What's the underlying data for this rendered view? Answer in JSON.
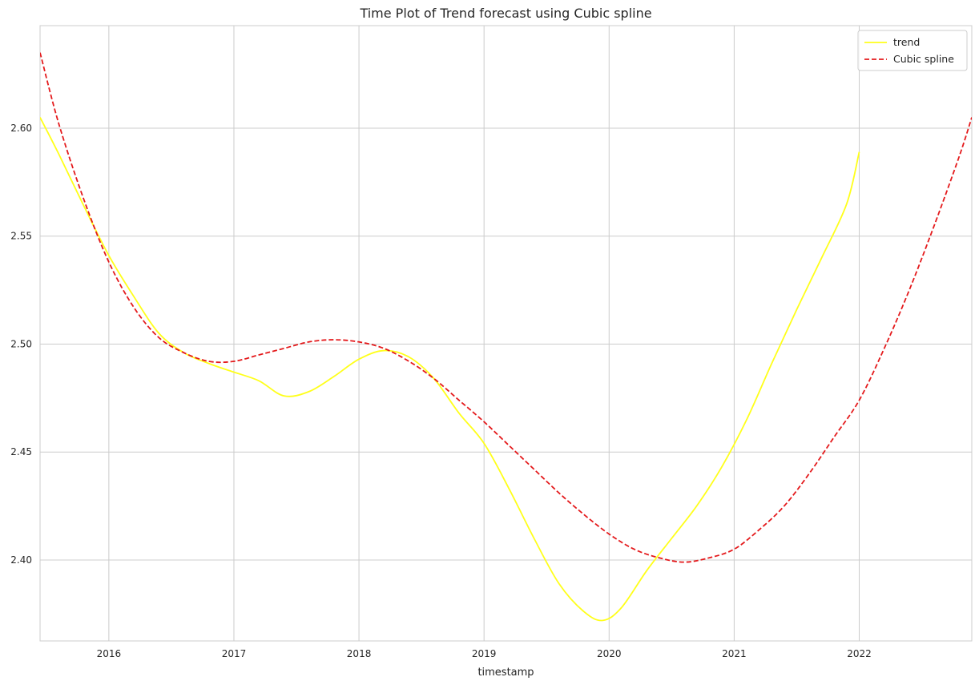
{
  "chart_data": {
    "type": "line",
    "title": "Time Plot of Trend forecast using Cubic spline",
    "xlabel": "timestamp",
    "ylabel": "",
    "xlim": [
      2015.45,
      2022.9
    ],
    "ylim": [
      2.3625,
      2.6475
    ],
    "grid": true,
    "legend": {
      "position": "top-right"
    },
    "x_ticks": [
      {
        "value": 2016,
        "label": "2016"
      },
      {
        "value": 2017,
        "label": "2017"
      },
      {
        "value": 2018,
        "label": "2018"
      },
      {
        "value": 2019,
        "label": "2019"
      },
      {
        "value": 2020,
        "label": "2020"
      },
      {
        "value": 2021,
        "label": "2021"
      },
      {
        "value": 2022,
        "label": "2022"
      }
    ],
    "y_ticks": [
      {
        "value": 2.4,
        "label": "2.40"
      },
      {
        "value": 2.45,
        "label": "2.45"
      },
      {
        "value": 2.5,
        "label": "2.50"
      },
      {
        "value": 2.55,
        "label": "2.55"
      },
      {
        "value": 2.6,
        "label": "2.60"
      }
    ],
    "series": [
      {
        "name": "trend",
        "color": "#ffff1a",
        "dash": "solid",
        "points": [
          [
            2015.45,
            2.605
          ],
          [
            2015.6,
            2.588
          ],
          [
            2015.8,
            2.564
          ],
          [
            2016.0,
            2.541
          ],
          [
            2016.2,
            2.522
          ],
          [
            2016.4,
            2.505
          ],
          [
            2016.6,
            2.496
          ],
          [
            2016.8,
            2.491
          ],
          [
            2017.0,
            2.487
          ],
          [
            2017.2,
            2.483
          ],
          [
            2017.4,
            2.476
          ],
          [
            2017.6,
            2.478
          ],
          [
            2017.8,
            2.485
          ],
          [
            2018.0,
            2.493
          ],
          [
            2018.2,
            2.497
          ],
          [
            2018.4,
            2.494
          ],
          [
            2018.6,
            2.484
          ],
          [
            2018.8,
            2.468
          ],
          [
            2019.0,
            2.454
          ],
          [
            2019.2,
            2.433
          ],
          [
            2019.4,
            2.41
          ],
          [
            2019.6,
            2.389
          ],
          [
            2019.8,
            2.376
          ],
          [
            2019.95,
            2.372
          ],
          [
            2020.1,
            2.378
          ],
          [
            2020.3,
            2.395
          ],
          [
            2020.5,
            2.41
          ],
          [
            2020.7,
            2.425
          ],
          [
            2020.9,
            2.443
          ],
          [
            2021.1,
            2.465
          ],
          [
            2021.3,
            2.491
          ],
          [
            2021.5,
            2.516
          ],
          [
            2021.7,
            2.54
          ],
          [
            2021.9,
            2.565
          ],
          [
            2022.0,
            2.589
          ]
        ]
      },
      {
        "name": "Cubic spline",
        "color": "#e41a1c",
        "dash": "dashed",
        "points": [
          [
            2015.45,
            2.635
          ],
          [
            2015.6,
            2.602
          ],
          [
            2015.8,
            2.567
          ],
          [
            2016.0,
            2.538
          ],
          [
            2016.2,
            2.517
          ],
          [
            2016.4,
            2.503
          ],
          [
            2016.6,
            2.496
          ],
          [
            2016.8,
            2.492
          ],
          [
            2017.0,
            2.492
          ],
          [
            2017.2,
            2.495
          ],
          [
            2017.4,
            2.498
          ],
          [
            2017.6,
            2.501
          ],
          [
            2017.8,
            2.502
          ],
          [
            2018.0,
            2.501
          ],
          [
            2018.2,
            2.498
          ],
          [
            2018.4,
            2.492
          ],
          [
            2018.6,
            2.484
          ],
          [
            2018.8,
            2.474
          ],
          [
            2019.0,
            2.464
          ],
          [
            2019.2,
            2.453
          ],
          [
            2019.4,
            2.442
          ],
          [
            2019.6,
            2.431
          ],
          [
            2019.8,
            2.421
          ],
          [
            2020.0,
            2.412
          ],
          [
            2020.2,
            2.405
          ],
          [
            2020.4,
            2.401
          ],
          [
            2020.6,
            2.399
          ],
          [
            2020.8,
            2.401
          ],
          [
            2021.0,
            2.405
          ],
          [
            2021.2,
            2.414
          ],
          [
            2021.4,
            2.425
          ],
          [
            2021.6,
            2.44
          ],
          [
            2021.8,
            2.457
          ],
          [
            2022.0,
            2.474
          ],
          [
            2022.2,
            2.498
          ],
          [
            2022.4,
            2.525
          ],
          [
            2022.6,
            2.555
          ],
          [
            2022.8,
            2.587
          ],
          [
            2022.9,
            2.605
          ]
        ]
      }
    ]
  }
}
